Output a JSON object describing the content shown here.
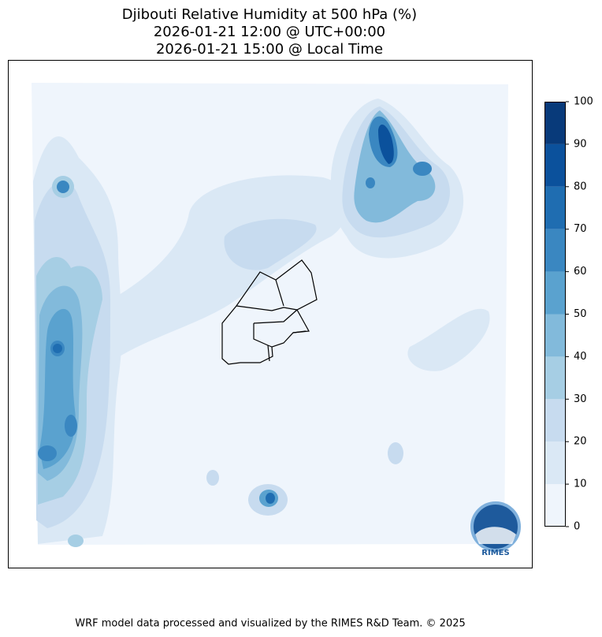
{
  "title": [
    "Djibouti Relative Humidity at 500 hPa (%)",
    "2026-01-21 12:00 @ UTC+00:00",
    "2026-01-21 15:00 @ Local Time"
  ],
  "colorbar": {
    "ticks": [
      0,
      10,
      20,
      30,
      40,
      50,
      60,
      70,
      80,
      90,
      100
    ],
    "colors": [
      "#eff5fc",
      "#dae8f5",
      "#c7dbef",
      "#a6cee4",
      "#82badb",
      "#5aa2cf",
      "#3a87c1",
      "#1f6db1",
      "#0b519c",
      "#083a7a"
    ]
  },
  "logo": "RIMES",
  "footer": "WRF model data processed and visualized by the RIMES R&D Team. © 2025"
}
